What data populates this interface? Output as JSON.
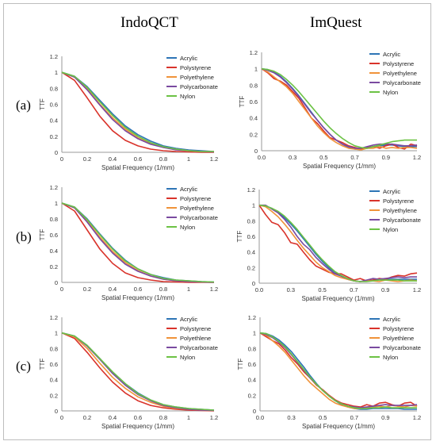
{
  "columns": [
    "IndoQCT",
    "ImQuest"
  ],
  "rows": [
    "(a)",
    "(b)",
    "(c)"
  ],
  "colors": {
    "Acrylic": "#2e75b6",
    "Polystyrene": "#d9332b",
    "Polyethylene": "#f0933a",
    "Polycarbonate": "#7a4aa0",
    "Nylon": "#6cc244"
  },
  "chart_data": [
    {
      "type": "line",
      "panel": "IndoQCT (a)",
      "xlabel": "Spatial Frequency (1/mm)",
      "ylabel": "TTF",
      "xlim": [
        0,
        1.2
      ],
      "ylim": [
        0,
        1.2
      ],
      "xticks": [
        "0",
        "0.2",
        "0.4",
        "0.6",
        "0.8",
        "1",
        "1.2"
      ],
      "yticks": [
        "0",
        "0.2",
        "0.4",
        "0.6",
        "0.8",
        "1",
        "1.2"
      ],
      "legend": "top-right",
      "x": [
        0,
        0.1,
        0.2,
        0.3,
        0.4,
        0.5,
        0.6,
        0.7,
        0.8,
        0.9,
        1.0,
        1.1,
        1.2
      ],
      "series": [
        {
          "name": "Acrylic",
          "values": [
            1,
            0.95,
            0.82,
            0.65,
            0.48,
            0.33,
            0.22,
            0.14,
            0.08,
            0.05,
            0.03,
            0.02,
            0.01
          ]
        },
        {
          "name": "Polystyrene",
          "values": [
            1,
            0.9,
            0.68,
            0.45,
            0.27,
            0.15,
            0.08,
            0.04,
            0.02,
            0.01,
            0.005,
            0,
            0
          ]
        },
        {
          "name": "Polyethylene",
          "values": [
            1,
            0.94,
            0.79,
            0.6,
            0.43,
            0.29,
            0.18,
            0.11,
            0.06,
            0.04,
            0.02,
            0.01,
            0.01
          ]
        },
        {
          "name": "Polycarbonate",
          "values": [
            1,
            0.94,
            0.78,
            0.59,
            0.41,
            0.27,
            0.17,
            0.1,
            0.06,
            0.03,
            0.02,
            0.01,
            0.005
          ]
        },
        {
          "name": "Nylon",
          "values": [
            1,
            0.95,
            0.81,
            0.63,
            0.46,
            0.31,
            0.2,
            0.12,
            0.07,
            0.04,
            0.02,
            0.01,
            0.01
          ]
        }
      ]
    },
    {
      "type": "line",
      "panel": "ImQuest (a)",
      "xlabel": "Spatial Frequency (1/mm)",
      "ylabel": "TTF",
      "xlim": [
        0,
        1.25
      ],
      "ylim": [
        0,
        1.2
      ],
      "xticks": [
        "0.0",
        "0.3",
        "0.5",
        "0.7",
        "0.9",
        "1.2"
      ],
      "xtick_pos": [
        0,
        0.25,
        0.5,
        0.75,
        1.0,
        1.25
      ],
      "yticks": [
        "0",
        "0.2",
        "0.4",
        "0.6",
        "0.8",
        "1",
        "1.2"
      ],
      "legend": "top-right",
      "x": [
        0,
        0.05,
        0.1,
        0.15,
        0.2,
        0.25,
        0.3,
        0.35,
        0.4,
        0.45,
        0.5,
        0.55,
        0.6,
        0.65,
        0.7,
        0.75,
        0.8,
        0.85,
        0.9,
        0.95,
        1.0,
        1.05,
        1.1,
        1.15,
        1.2,
        1.25
      ],
      "series": [
        {
          "name": "Acrylic",
          "values": [
            1,
            0.99,
            0.96,
            0.91,
            0.84,
            0.76,
            0.67,
            0.57,
            0.47,
            0.37,
            0.28,
            0.2,
            0.13,
            0.08,
            0.04,
            0.02,
            0.02,
            0.03,
            0.05,
            0.06,
            0.07,
            0.07,
            0.06,
            0.05,
            0.05,
            0.05
          ]
        },
        {
          "name": "Polystyrene",
          "values": [
            1,
            0.95,
            0.88,
            0.85,
            0.8,
            0.72,
            0.64,
            0.52,
            0.4,
            0.33,
            0.24,
            0.16,
            0.13,
            0.1,
            0.06,
            0.04,
            0.02,
            0.04,
            0.05,
            0.03,
            0.06,
            0.08,
            0.04,
            0.02,
            0.08,
            0.06
          ]
        },
        {
          "name": "Polyethylene",
          "values": [
            1,
            0.96,
            0.9,
            0.84,
            0.78,
            0.7,
            0.6,
            0.5,
            0.4,
            0.3,
            0.22,
            0.15,
            0.1,
            0.06,
            0.03,
            0.02,
            0.01,
            0.03,
            0.03,
            0.05,
            0.03,
            0.04,
            0.03,
            0.04,
            0.04,
            0.03
          ]
        },
        {
          "name": "Polycarbonate",
          "values": [
            1,
            0.98,
            0.95,
            0.9,
            0.83,
            0.75,
            0.66,
            0.56,
            0.46,
            0.37,
            0.28,
            0.2,
            0.13,
            0.08,
            0.05,
            0.03,
            0.03,
            0.05,
            0.07,
            0.08,
            0.08,
            0.08,
            0.07,
            0.06,
            0.06,
            0.07
          ]
        },
        {
          "name": "Nylon",
          "values": [
            1,
            0.99,
            0.97,
            0.93,
            0.87,
            0.8,
            0.72,
            0.63,
            0.54,
            0.45,
            0.36,
            0.28,
            0.21,
            0.15,
            0.1,
            0.06,
            0.04,
            0.03,
            0.05,
            0.07,
            0.09,
            0.11,
            0.12,
            0.13,
            0.13,
            0.13
          ]
        }
      ]
    },
    {
      "type": "line",
      "panel": "IndoQCT (b)",
      "xlabel": "Spatial Frequency (1/mm)",
      "ylabel": "TTF",
      "xlim": [
        0,
        1.2
      ],
      "ylim": [
        0,
        1.2
      ],
      "xticks": [
        "0",
        "0.2",
        "0.4",
        "0.6",
        "0.8",
        "1",
        "1.2"
      ],
      "yticks": [
        "0",
        "0.2",
        "0.4",
        "0.6",
        "0.8",
        "1",
        "1.2"
      ],
      "legend": "top-right",
      "x": [
        0,
        0.1,
        0.2,
        0.3,
        0.4,
        0.5,
        0.6,
        0.7,
        0.8,
        0.9,
        1.0,
        1.1,
        1.2
      ],
      "series": [
        {
          "name": "Acrylic",
          "values": [
            1,
            0.95,
            0.8,
            0.61,
            0.43,
            0.28,
            0.17,
            0.1,
            0.06,
            0.03,
            0.02,
            0.01,
            0.005
          ]
        },
        {
          "name": "Polystyrene",
          "values": [
            1,
            0.9,
            0.66,
            0.42,
            0.24,
            0.12,
            0.06,
            0.03,
            0.01,
            0.005,
            0,
            0,
            0
          ]
        },
        {
          "name": "Polyethylene",
          "values": [
            1,
            0.94,
            0.77,
            0.57,
            0.39,
            0.25,
            0.15,
            0.08,
            0.04,
            0.02,
            0.01,
            0.005,
            0
          ]
        },
        {
          "name": "Polycarbonate",
          "values": [
            1,
            0.94,
            0.76,
            0.55,
            0.37,
            0.23,
            0.14,
            0.08,
            0.04,
            0.02,
            0.01,
            0.005,
            0
          ]
        },
        {
          "name": "Nylon",
          "values": [
            1,
            0.95,
            0.79,
            0.6,
            0.42,
            0.27,
            0.17,
            0.1,
            0.05,
            0.03,
            0.02,
            0.01,
            0.005
          ]
        }
      ]
    },
    {
      "type": "line",
      "panel": "ImQuest (b)",
      "xlabel": "Spatial Frequency (1/mm)",
      "ylabel": "TTF",
      "xlim": [
        0,
        1.25
      ],
      "ylim": [
        0,
        1.2
      ],
      "xticks": [
        "0.0",
        "0.3",
        "0.5",
        "0.7",
        "0.9",
        "1.2"
      ],
      "xtick_pos": [
        0,
        0.25,
        0.5,
        0.75,
        1.0,
        1.25
      ],
      "yticks": [
        "0",
        "0.2",
        "0.4",
        "0.6",
        "0.8",
        "1",
        "1.2"
      ],
      "legend": "top-right",
      "x": [
        0,
        0.05,
        0.1,
        0.15,
        0.2,
        0.25,
        0.3,
        0.35,
        0.4,
        0.45,
        0.5,
        0.55,
        0.6,
        0.65,
        0.7,
        0.75,
        0.8,
        0.85,
        0.9,
        0.95,
        1.0,
        1.05,
        1.1,
        1.15,
        1.2,
        1.25
      ],
      "series": [
        {
          "name": "Acrylic",
          "values": [
            1,
            0.99,
            0.96,
            0.91,
            0.84,
            0.76,
            0.67,
            0.57,
            0.47,
            0.37,
            0.28,
            0.2,
            0.14,
            0.09,
            0.05,
            0.03,
            0.02,
            0.03,
            0.04,
            0.05,
            0.05,
            0.05,
            0.05,
            0.05,
            0.05,
            0.05
          ]
        },
        {
          "name": "Polystyrene",
          "values": [
            1,
            0.88,
            0.78,
            0.75,
            0.65,
            0.52,
            0.5,
            0.4,
            0.3,
            0.22,
            0.18,
            0.14,
            0.12,
            0.12,
            0.08,
            0.04,
            0.06,
            0.03,
            0.04,
            0.06,
            0.05,
            0.08,
            0.1,
            0.09,
            0.12,
            0.13
          ]
        },
        {
          "name": "Polyethylene",
          "values": [
            1,
            0.98,
            0.92,
            0.85,
            0.76,
            0.66,
            0.55,
            0.45,
            0.36,
            0.27,
            0.2,
            0.15,
            0.1,
            0.07,
            0.05,
            0.03,
            0.02,
            0.03,
            0.03,
            0.02,
            0.04,
            0.03,
            0.02,
            0.03,
            0.04,
            0.03
          ]
        },
        {
          "name": "Polycarbonate",
          "values": [
            1,
            1.0,
            0.95,
            0.9,
            0.82,
            0.72,
            0.6,
            0.5,
            0.43,
            0.33,
            0.25,
            0.18,
            0.12,
            0.09,
            0.06,
            0.03,
            0.02,
            0.04,
            0.06,
            0.05,
            0.06,
            0.07,
            0.08,
            0.07,
            0.08,
            0.08
          ]
        },
        {
          "name": "Nylon",
          "values": [
            1,
            0.99,
            0.96,
            0.92,
            0.86,
            0.78,
            0.69,
            0.59,
            0.49,
            0.39,
            0.3,
            0.22,
            0.15,
            0.1,
            0.06,
            0.03,
            0.02,
            0.02,
            0.03,
            0.04,
            0.04,
            0.04,
            0.04,
            0.03,
            0.03,
            0.03
          ]
        }
      ]
    },
    {
      "type": "line",
      "panel": "IndoQCT (c)",
      "xlabel": "Spatial Frequency (1/mm)",
      "ylabel": "TTF",
      "xlim": [
        0,
        1.2
      ],
      "ylim": [
        0,
        1.2
      ],
      "xticks": [
        "0",
        "0.2",
        "0.4",
        "0.6",
        "0.8",
        "1",
        "1.2"
      ],
      "yticks": [
        "0",
        "0.2",
        "0.4",
        "0.6",
        "0.8",
        "1",
        "1.2"
      ],
      "legend": "top-right",
      "x": [
        0,
        0.1,
        0.2,
        0.3,
        0.4,
        0.5,
        0.6,
        0.7,
        0.8,
        0.9,
        1.0,
        1.1,
        1.2
      ],
      "series": [
        {
          "name": "Acrylic",
          "values": [
            1,
            0.96,
            0.84,
            0.67,
            0.5,
            0.35,
            0.23,
            0.14,
            0.08,
            0.05,
            0.03,
            0.02,
            0.01
          ]
        },
        {
          "name": "Polystyrene",
          "values": [
            1,
            0.93,
            0.75,
            0.55,
            0.37,
            0.23,
            0.13,
            0.07,
            0.04,
            0.02,
            0.01,
            0.005,
            0
          ]
        },
        {
          "name": "Polyethlene",
          "values": [
            1,
            0.95,
            0.8,
            0.61,
            0.43,
            0.29,
            0.18,
            0.11,
            0.06,
            0.03,
            0.02,
            0.01,
            0.005
          ]
        },
        {
          "name": "Polycarbonate",
          "values": [
            1,
            0.96,
            0.83,
            0.66,
            0.48,
            0.33,
            0.21,
            0.13,
            0.07,
            0.04,
            0.02,
            0.01,
            0.005
          ]
        },
        {
          "name": "Nylon",
          "values": [
            1,
            0.96,
            0.84,
            0.67,
            0.5,
            0.35,
            0.22,
            0.14,
            0.08,
            0.05,
            0.03,
            0.02,
            0.01
          ]
        }
      ]
    },
    {
      "type": "line",
      "panel": "ImQuest (c)",
      "xlabel": "Spatial Frequency (1/mm)",
      "ylabel": "TTF",
      "xlim": [
        0,
        1.25
      ],
      "ylim": [
        0,
        1.2
      ],
      "xticks": [
        "0.0",
        "0.3",
        "0.5",
        "0.7",
        "0.9",
        "1.2"
      ],
      "xtick_pos": [
        0,
        0.25,
        0.5,
        0.75,
        1.0,
        1.25
      ],
      "yticks": [
        "0",
        "0.2",
        "0.4",
        "0.6",
        "0.8",
        "1",
        "1.2"
      ],
      "legend": "top-right",
      "x": [
        0,
        0.05,
        0.1,
        0.15,
        0.2,
        0.25,
        0.3,
        0.35,
        0.4,
        0.45,
        0.5,
        0.55,
        0.6,
        0.65,
        0.7,
        0.75,
        0.8,
        0.85,
        0.9,
        0.95,
        1.0,
        1.05,
        1.1,
        1.15,
        1.2,
        1.25
      ],
      "series": [
        {
          "name": "Acrylic",
          "values": [
            1,
            0.99,
            0.96,
            0.91,
            0.84,
            0.76,
            0.66,
            0.56,
            0.45,
            0.35,
            0.26,
            0.19,
            0.13,
            0.08,
            0.05,
            0.03,
            0.02,
            0.02,
            0.03,
            0.03,
            0.03,
            0.03,
            0.03,
            0.02,
            0.02,
            0.02
          ]
        },
        {
          "name": "Polystyrene",
          "values": [
            1,
            0.95,
            0.9,
            0.86,
            0.78,
            0.68,
            0.6,
            0.5,
            0.42,
            0.33,
            0.27,
            0.2,
            0.14,
            0.1,
            0.08,
            0.06,
            0.05,
            0.08,
            0.06,
            0.1,
            0.11,
            0.08,
            0.06,
            0.1,
            0.11,
            0.06
          ]
        },
        {
          "name": "Polyethlene",
          "values": [
            1,
            0.97,
            0.9,
            0.83,
            0.75,
            0.65,
            0.55,
            0.45,
            0.36,
            0.29,
            0.22,
            0.15,
            0.1,
            0.07,
            0.05,
            0.03,
            0.03,
            0.04,
            0.05,
            0.06,
            0.05,
            0.07,
            0.06,
            0.05,
            0.07,
            0.06
          ]
        },
        {
          "name": "Polycarbonate",
          "values": [
            1,
            0.98,
            0.94,
            0.88,
            0.81,
            0.72,
            0.62,
            0.52,
            0.42,
            0.34,
            0.26,
            0.19,
            0.13,
            0.09,
            0.06,
            0.05,
            0.04,
            0.05,
            0.06,
            0.07,
            0.08,
            0.07,
            0.07,
            0.07,
            0.07,
            0.08
          ]
        },
        {
          "name": "Nylon",
          "values": [
            1,
            0.99,
            0.95,
            0.89,
            0.82,
            0.73,
            0.63,
            0.53,
            0.43,
            0.34,
            0.26,
            0.19,
            0.13,
            0.09,
            0.06,
            0.04,
            0.03,
            0.03,
            0.04,
            0.04,
            0.05,
            0.04,
            0.04,
            0.04,
            0.04,
            0.04
          ]
        }
      ]
    }
  ]
}
